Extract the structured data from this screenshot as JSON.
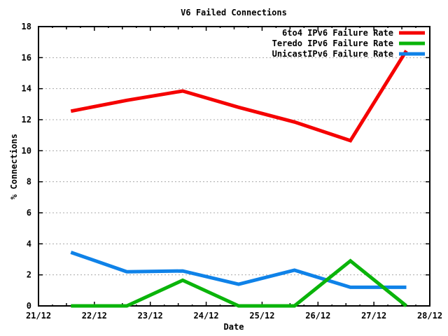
{
  "chart_data": {
    "type": "line",
    "title": "V6 Failed Connections",
    "xlabel": "Date",
    "ylabel": "% Connections",
    "x_tick_labels": [
      "21/12",
      "22/12",
      "23/12",
      "24/12",
      "25/12",
      "26/12",
      "27/12",
      "28/12"
    ],
    "x_range_days": [
      0,
      7
    ],
    "x_minor_tick_every_days": 0.25,
    "y_tick_labels": [
      "0",
      "2",
      "4",
      "6",
      "8",
      "10",
      "12",
      "14",
      "16",
      "18"
    ],
    "ylim": [
      0,
      18
    ],
    "y_tick_step": 2,
    "grid": "horizontal-dashed",
    "grid_color": "#a8a8a8",
    "axis_color": "#000000",
    "legend_position": "top-right-inside",
    "x_offsets_days": [
      0.58,
      1.58,
      2.58,
      3.58,
      4.58,
      5.58,
      6.58
    ],
    "series": [
      {
        "name": "6to4 IPv6 Failure Rate",
        "color": "#f50000",
        "values": [
          12.55,
          13.25,
          13.85,
          12.8,
          11.85,
          10.65,
          16.45
        ]
      },
      {
        "name": "Teredo IPv6 Failure Rate",
        "color": "#0ab40a",
        "values": [
          0,
          0,
          1.65,
          0,
          0,
          2.9,
          0
        ]
      },
      {
        "name": "UnicastIPv6 Failure Rate",
        "color": "#0f82e8",
        "values": [
          3.45,
          2.2,
          2.25,
          1.4,
          2.3,
          1.2,
          1.2
        ]
      }
    ]
  }
}
